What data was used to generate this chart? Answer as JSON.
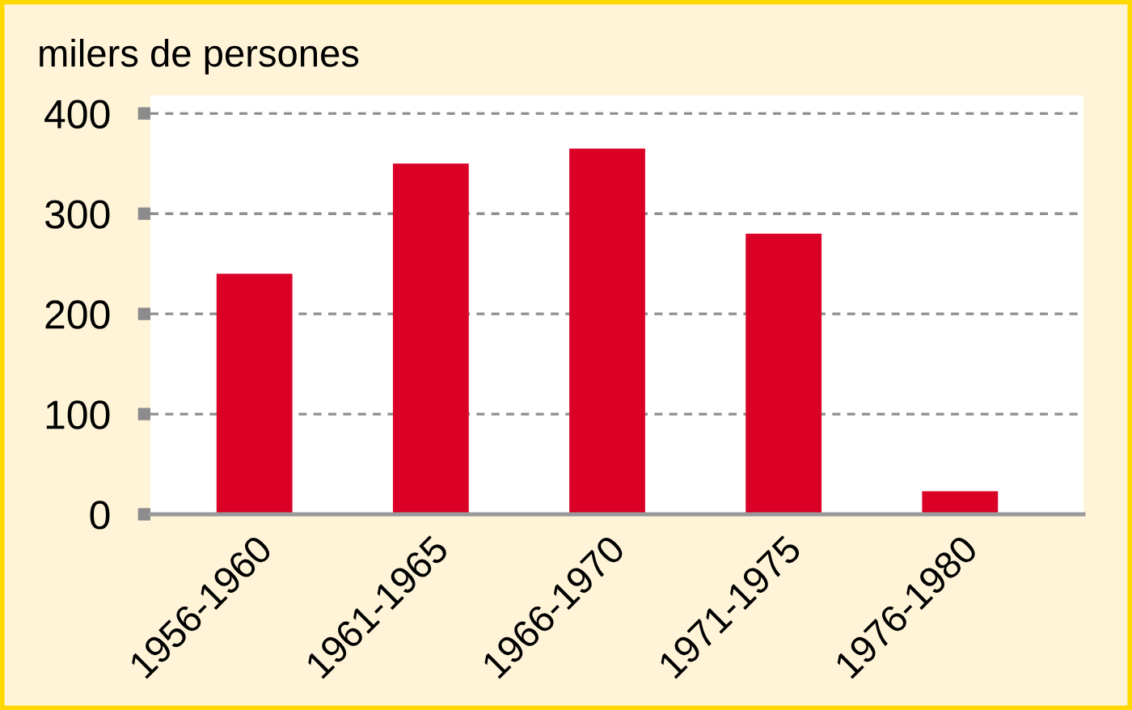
{
  "chart_data": {
    "type": "bar",
    "ylabel": "milers de persones",
    "categories": [
      "1956-1960",
      "1961-1965",
      "1966-1970",
      "1971-1975",
      "1976-1980"
    ],
    "values": [
      240,
      350,
      365,
      280,
      23
    ],
    "color": "#da0026",
    "ylim": [
      0,
      418
    ],
    "yticks": [
      0,
      100,
      200,
      300,
      400
    ],
    "grid": "y"
  }
}
